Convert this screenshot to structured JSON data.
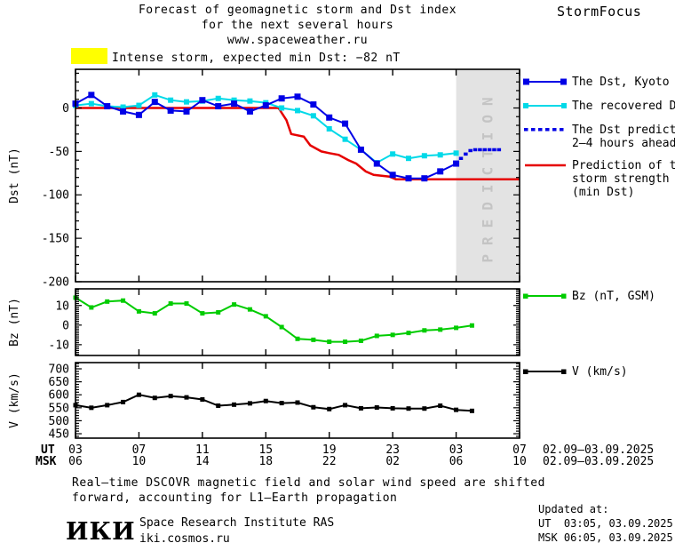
{
  "header": {
    "title_line1": "Forecast of geomagnetic storm and Dst index",
    "title_line2": "for the next several hours",
    "title_line3": "www.spaceweather.ru",
    "brand": "StormFocus"
  },
  "alert": {
    "text": "Intense storm, expected min Dst: −82 nT",
    "swatch_color": "#ffff00"
  },
  "colors": {
    "dst_kyoto": "#0000e6",
    "dst_recovered": "#00d9e8",
    "dst_prediction": "#0000e6",
    "storm_prediction": "#e60000",
    "bz": "#00cc00",
    "v": "#000000",
    "band": "#e3e3e3",
    "band_text": "#c4c4c4"
  },
  "legend_main": [
    {
      "label": "The Dst, Kyoto",
      "color": "#0000e6"
    },
    {
      "label": "The recovered Dst",
      "color": "#00d9e8"
    },
    {
      "line1": "The Dst prediction",
      "line2": "2–4 hours ahead",
      "color": "#0000e6"
    },
    {
      "line1": "Prediction of the",
      "line2": "storm strength",
      "line3": "(min Dst)",
      "color": "#e60000"
    }
  ],
  "legend_bz": {
    "label": "Bz (nT, GSM)",
    "color": "#00cc00"
  },
  "legend_v": {
    "label": "V (km/s)",
    "color": "#000000"
  },
  "x_axis": {
    "ut_label": "UT",
    "msk_label": "MSK",
    "tick_hours": [
      3,
      7,
      11,
      15,
      19,
      23,
      27,
      31
    ],
    "ut_ticks": [
      "03",
      "07",
      "11",
      "15",
      "19",
      "23",
      "03",
      "07"
    ],
    "msk_ticks": [
      "06",
      "10",
      "14",
      "18",
      "22",
      "02",
      "06",
      "10"
    ],
    "ut_date": "02.09–03.09.2025",
    "msk_date": "02.09–03.09.2025"
  },
  "footer": {
    "note_line1": "Real–time DSCOVR magnetic field and solar wind speed are shifted",
    "note_line2": "forward, accounting for L1–Earth propagation",
    "logo": "ИКИ",
    "institute": "Space Research Institute RAS",
    "institute_url": "iki.cosmos.ru",
    "updated_label": "Updated at:",
    "updated_ut": "UT  03:05, 03.09.2025",
    "updated_msk": "MSK 06:05, 03.09.2025"
  },
  "chart_data": [
    {
      "id": "dst",
      "type": "line",
      "ylabel": "Dst (nT)",
      "ylim": [
        -200,
        44.5
      ],
      "yticks": [
        0,
        -50,
        -100,
        -150,
        -200
      ],
      "yminor": 10,
      "xlim_hours_ut": [
        3,
        31
      ],
      "x_unit": "hour UT starting 03:00 02.09.2025",
      "prediction_band": {
        "start_hour": 27,
        "end_hour": 31,
        "label": "PREDICTION"
      },
      "series": [
        {
          "name": "Prediction of the storm strength (min Dst)",
          "color": "#e60000",
          "style": "line",
          "width": 2.5,
          "marker": "none",
          "x": [
            3,
            15.8,
            16.3,
            16.6,
            17.4,
            17.8,
            18.5,
            19.0,
            19.6,
            20.2,
            20.7,
            21.3,
            21.8,
            22.8,
            23.2,
            31
          ],
          "values": [
            0,
            0,
            -14,
            -30,
            -33,
            -43,
            -50,
            -52,
            -54,
            -60,
            -64,
            -73,
            -77,
            -79,
            -82,
            -82
          ]
        },
        {
          "name": "The recovered Dst",
          "color": "#00d9e8",
          "style": "line",
          "width": 2,
          "marker": "square",
          "x": [
            3,
            4,
            5,
            6,
            7,
            8,
            9,
            10,
            11,
            12,
            13,
            14,
            15,
            16,
            17,
            18,
            19,
            20,
            21,
            22,
            23,
            24,
            25,
            26,
            27
          ],
          "values": [
            3,
            5,
            2,
            1,
            3,
            15,
            9,
            7,
            8,
            11,
            9,
            8,
            6,
            0,
            -3,
            -9,
            -24,
            -36,
            -48,
            -63,
            -53,
            -58,
            -55,
            -54,
            -52
          ]
        },
        {
          "name": "The Dst, Kyoto",
          "color": "#0000e6",
          "style": "line",
          "width": 2,
          "marker": "square",
          "x": [
            3,
            4,
            5,
            6,
            7,
            8,
            9,
            10,
            11,
            12,
            13,
            14,
            15,
            16,
            17,
            18,
            19,
            20,
            21,
            22,
            23,
            24,
            25,
            26,
            27
          ],
          "values": [
            5,
            15,
            2,
            -4,
            -8,
            7,
            -3,
            -4,
            9,
            2,
            5,
            -4,
            3,
            11,
            13,
            4,
            -11,
            -18,
            -48,
            -64,
            -77,
            -81,
            -81,
            -73,
            -64
          ]
        },
        {
          "name": "The Dst prediction 2–4 hours ahead",
          "color": "#0000e6",
          "style": "dotted",
          "marker": "square",
          "x": [
            27.3,
            27.6,
            27.9,
            28.2,
            28.5,
            28.8,
            29.1,
            29.4,
            29.7
          ],
          "values": [
            -58,
            -53,
            -49,
            -48,
            -48,
            -48,
            -48,
            -48,
            -48
          ]
        }
      ]
    },
    {
      "id": "bz",
      "type": "line",
      "ylabel": "Bz (nT)",
      "ylim": [
        -15.5,
        18.5
      ],
      "yticks": [
        10,
        0,
        -10
      ],
      "yminor": 1,
      "xlim_hours_ut": [
        3,
        31
      ],
      "series": [
        {
          "name": "Bz (nT, GSM)",
          "color": "#00cc00",
          "style": "line",
          "width": 2,
          "marker": "square",
          "x": [
            3,
            4,
            5,
            6,
            7,
            8,
            9,
            10,
            11,
            12,
            13,
            14,
            15,
            16,
            17,
            18,
            19,
            20,
            21,
            22,
            23,
            24,
            25,
            26,
            27,
            28
          ],
          "values": [
            14,
            9,
            12,
            12.5,
            7,
            6,
            11,
            11,
            6,
            6.5,
            10.5,
            8,
            4.5,
            -1,
            -7,
            -7.5,
            -8.5,
            -8.5,
            -8,
            -5.5,
            -5,
            -4,
            -2.7,
            -2.3,
            -1.4,
            -0.2
          ]
        }
      ]
    },
    {
      "id": "v",
      "type": "line",
      "ylabel": "V (km/s)",
      "ylim": [
        433,
        724
      ],
      "yticks": [
        700,
        650,
        600,
        550,
        500,
        450
      ],
      "yminor": 10,
      "xlim_hours_ut": [
        3,
        31
      ],
      "series": [
        {
          "name": "V (km/s)",
          "color": "#000000",
          "style": "line",
          "width": 2,
          "marker": "square",
          "x": [
            3,
            4,
            5,
            6,
            7,
            8,
            9,
            10,
            11,
            12,
            13,
            14,
            15,
            16,
            17,
            18,
            19,
            20,
            21,
            22,
            23,
            24,
            25,
            26,
            27,
            28
          ],
          "values": [
            560,
            550,
            560,
            572,
            600,
            588,
            595,
            590,
            582,
            558,
            562,
            567,
            576,
            568,
            570,
            552,
            545,
            560,
            548,
            551,
            548,
            547,
            547,
            558,
            542,
            538
          ]
        }
      ]
    }
  ]
}
